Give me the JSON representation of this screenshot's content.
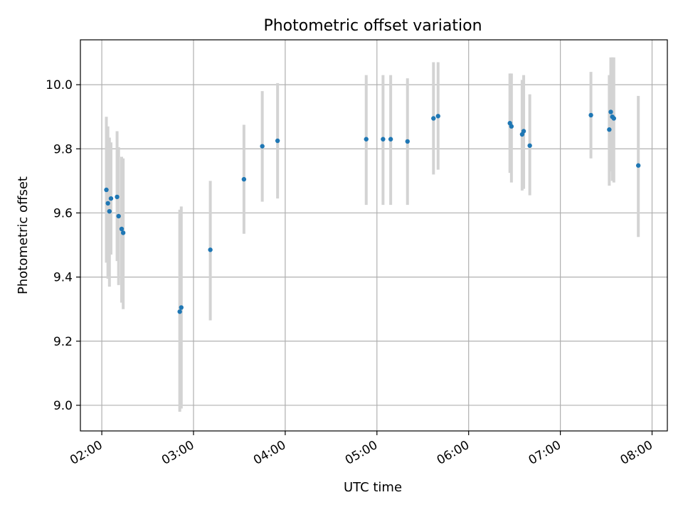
{
  "chart_data": {
    "type": "scatter",
    "title": "Photometric offset variation",
    "xlabel": "UTC time",
    "ylabel": "Photometric offset",
    "x_ticks": [
      "02:00",
      "03:00",
      "04:00",
      "05:00",
      "06:00",
      "07:00",
      "08:00"
    ],
    "y_ticks": [
      "9.0",
      "9.2",
      "9.4",
      "9.6",
      "9.8",
      "10.0"
    ],
    "xlim": [
      "01:46",
      "08:10"
    ],
    "ylim": [
      8.92,
      10.14
    ],
    "grid": true,
    "colors": {
      "points": "#1f77b4",
      "errorbars": "#d3d3d3",
      "grid": "#b0b0b0"
    },
    "points": [
      {
        "t": "02:03",
        "y": 9.672,
        "lo": 9.445,
        "hi": 9.9
      },
      {
        "t": "02:04",
        "y": 9.63,
        "lo": 9.395,
        "hi": 9.87
      },
      {
        "t": "02:05",
        "y": 9.605,
        "lo": 9.37,
        "hi": 9.835
      },
      {
        "t": "02:06",
        "y": 9.645,
        "lo": 9.47,
        "hi": 9.82
      },
      {
        "t": "02:10",
        "y": 9.65,
        "lo": 9.45,
        "hi": 9.855
      },
      {
        "t": "02:11",
        "y": 9.59,
        "lo": 9.375,
        "hi": 9.805
      },
      {
        "t": "02:13",
        "y": 9.55,
        "lo": 9.32,
        "hi": 9.775
      },
      {
        "t": "02:14",
        "y": 9.538,
        "lo": 9.3,
        "hi": 9.77
      },
      {
        "t": "02:51",
        "y": 9.292,
        "lo": 8.98,
        "hi": 9.61
      },
      {
        "t": "02:52",
        "y": 9.305,
        "lo": 8.99,
        "hi": 9.62
      },
      {
        "t": "03:11",
        "y": 9.485,
        "lo": 9.265,
        "hi": 9.7
      },
      {
        "t": "03:33",
        "y": 9.705,
        "lo": 9.535,
        "hi": 9.875
      },
      {
        "t": "03:45",
        "y": 9.808,
        "lo": 9.635,
        "hi": 9.98
      },
      {
        "t": "03:55",
        "y": 9.825,
        "lo": 9.645,
        "hi": 10.005
      },
      {
        "t": "04:53",
        "y": 9.83,
        "lo": 9.625,
        "hi": 10.03
      },
      {
        "t": "05:04",
        "y": 9.83,
        "lo": 9.625,
        "hi": 10.03
      },
      {
        "t": "05:09",
        "y": 9.83,
        "lo": 9.625,
        "hi": 10.03
      },
      {
        "t": "05:20",
        "y": 9.823,
        "lo": 9.625,
        "hi": 10.02
      },
      {
        "t": "05:37",
        "y": 9.895,
        "lo": 9.72,
        "hi": 10.07
      },
      {
        "t": "05:40",
        "y": 9.902,
        "lo": 9.735,
        "hi": 10.07
      },
      {
        "t": "06:27",
        "y": 9.88,
        "lo": 9.725,
        "hi": 10.035
      },
      {
        "t": "06:28",
        "y": 9.87,
        "lo": 9.695,
        "hi": 10.035
      },
      {
        "t": "06:35",
        "y": 9.845,
        "lo": 9.67,
        "hi": 10.015
      },
      {
        "t": "06:36",
        "y": 9.855,
        "lo": 9.675,
        "hi": 10.03
      },
      {
        "t": "06:40",
        "y": 9.81,
        "lo": 9.655,
        "hi": 9.97
      },
      {
        "t": "07:20",
        "y": 9.905,
        "lo": 9.77,
        "hi": 10.04
      },
      {
        "t": "07:32",
        "y": 9.86,
        "lo": 9.685,
        "hi": 10.03
      },
      {
        "t": "07:33",
        "y": 9.915,
        "lo": 9.73,
        "hi": 10.085
      },
      {
        "t": "07:34",
        "y": 9.9,
        "lo": 9.7,
        "hi": 10.085
      },
      {
        "t": "07:35",
        "y": 9.895,
        "lo": 9.695,
        "hi": 10.085
      },
      {
        "t": "07:51",
        "y": 9.748,
        "lo": 9.525,
        "hi": 9.965
      }
    ]
  }
}
